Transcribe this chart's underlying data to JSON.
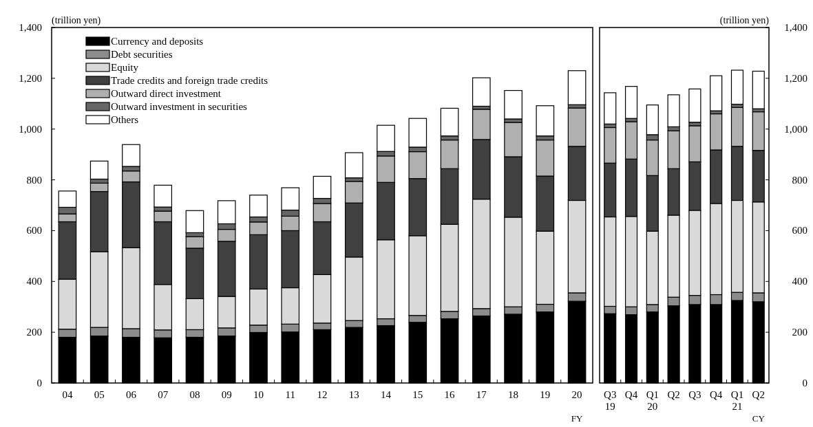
{
  "chart_data": [
    {
      "type": "bar",
      "stacked": true,
      "ylabel": "(trillion yen)",
      "categories": [
        "04",
        "05",
        "06",
        "07",
        "08",
        "09",
        "10",
        "11",
        "12",
        "13",
        "14",
        "15",
        "16",
        "17",
        "18",
        "19",
        "20"
      ],
      "ylim": [
        0,
        1400
      ],
      "yticks": [
        0,
        {
          "value": 200,
          "label": "200"
        },
        {
          "value": 400,
          "label": "400"
        },
        {
          "value": 600,
          "label": "600"
        },
        {
          "value": 800,
          "label": "800"
        },
        {
          "value": 1000,
          "label": "1,000"
        },
        {
          "value": 1200,
          "label": "1,200"
        },
        {
          "value": 1400,
          "label": "1,400"
        }
      ],
      "legend": "top left",
      "grid": false,
      "annotations": [
        "FY"
      ],
      "series": [
        {
          "name": "Currency and deposits",
          "color": "#000000",
          "values": [
            180,
            185,
            180,
            178,
            180,
            185,
            199,
            201,
            210,
            219,
            226,
            239,
            253,
            264,
            271,
            280,
            322
          ]
        },
        {
          "name": "Debt securities",
          "color": "#8c8c8c",
          "values": [
            32,
            34,
            34,
            31,
            30,
            32,
            29,
            31,
            26,
            27,
            27,
            27,
            29,
            29,
            29,
            30,
            33
          ]
        },
        {
          "name": "Equity",
          "color": "#d9d9d9",
          "values": [
            197,
            298,
            319,
            179,
            122,
            124,
            142,
            143,
            191,
            250,
            311,
            314,
            343,
            431,
            353,
            288,
            364
          ]
        },
        {
          "name": "Trade credits and foreign trade credits",
          "color": "#404040",
          "values": [
            226,
            237,
            259,
            247,
            199,
            217,
            214,
            225,
            208,
            213,
            226,
            225,
            219,
            235,
            238,
            217,
            213
          ]
        },
        {
          "name": "Outward direct investment",
          "color": "#b0b0b0",
          "values": [
            31,
            33,
            43,
            42,
            45,
            47,
            50,
            57,
            72,
            85,
            104,
            106,
            113,
            119,
            135,
            142,
            151
          ]
        },
        {
          "name": "Outward investment in securities",
          "color": "#666666",
          "values": [
            26,
            16,
            18,
            16,
            16,
            22,
            20,
            24,
            20,
            14,
            18,
            18,
            16,
            12,
            14,
            16,
            13
          ]
        },
        {
          "name": "Others",
          "color": "#ffffff",
          "values": [
            64,
            71,
            86,
            86,
            87,
            91,
            86,
            88,
            87,
            99,
            103,
            113,
            109,
            112,
            112,
            119,
            134
          ]
        }
      ]
    },
    {
      "type": "bar",
      "stacked": true,
      "ylabel": "(trillion yen)",
      "categories": [
        "Q3\n19",
        "Q4",
        "Q1\n20",
        "Q2",
        "Q3",
        "Q4",
        "Q1\n21",
        "Q2"
      ],
      "ylim": [
        0,
        1400
      ],
      "yticks": [
        0,
        {
          "value": 200,
          "label": "200"
        },
        {
          "value": 400,
          "label": "400"
        },
        {
          "value": 600,
          "label": "600"
        },
        {
          "value": 800,
          "label": "800"
        },
        {
          "value": 1000,
          "label": "1,000"
        },
        {
          "value": 1200,
          "label": "1,200"
        },
        {
          "value": 1400,
          "label": "1,400"
        }
      ],
      "grid": false,
      "annotations": [
        "CY"
      ],
      "series": [
        {
          "color": "#000000",
          "values": [
            273,
            269,
            280,
            304,
            309,
            309,
            325,
            320
          ]
        },
        {
          "color": "#8c8c8c",
          "values": [
            29,
            31,
            29,
            34,
            36,
            39,
            32,
            35
          ]
        },
        {
          "color": "#d9d9d9",
          "values": [
            352,
            356,
            289,
            323,
            335,
            359,
            362,
            358
          ]
        },
        {
          "color": "#404040",
          "values": [
            212,
            226,
            219,
            183,
            191,
            211,
            213,
            203
          ]
        },
        {
          "color": "#b0b0b0",
          "values": [
            140,
            147,
            140,
            149,
            142,
            142,
            153,
            152
          ]
        },
        {
          "color": "#666666",
          "values": [
            14,
            13,
            21,
            16,
            14,
            12,
            13,
            12
          ]
        },
        {
          "color": "#ffffff",
          "values": [
            123,
            126,
            117,
            126,
            131,
            138,
            134,
            148
          ]
        }
      ]
    }
  ]
}
